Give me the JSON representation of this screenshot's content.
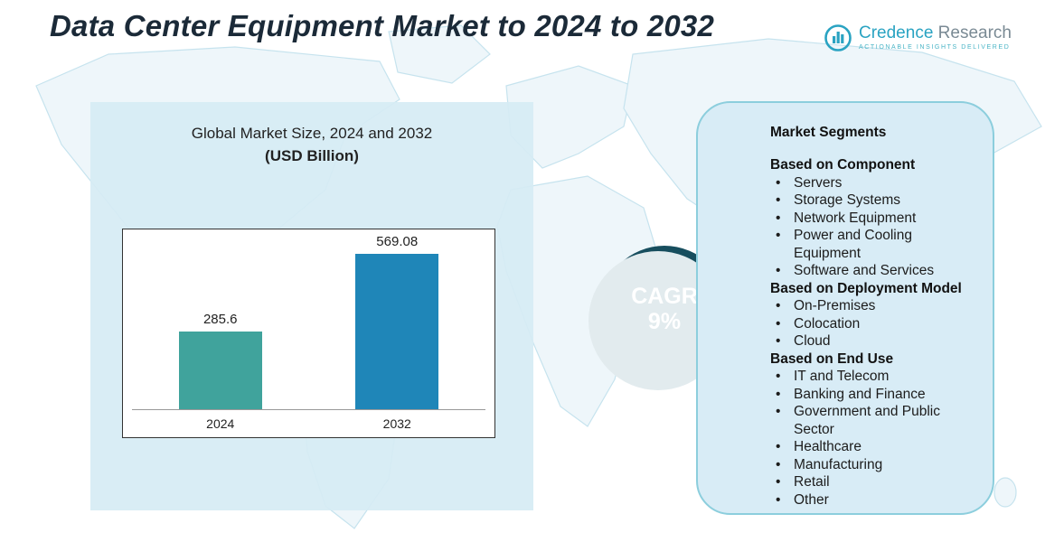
{
  "title": "Data Center Equipment Market to 2024 to 2032",
  "logo": {
    "name_primary": "Credence",
    "name_secondary": "Research",
    "tagline": "Actionable Insights Delivered"
  },
  "chart_data": {
    "type": "bar",
    "title": "Global Market Size, 2024 and 2032",
    "subtitle": "(USD Billion)",
    "categories": [
      "2024",
      "2032"
    ],
    "values": [
      285.6,
      569.08
    ],
    "value_labels": [
      "285.6",
      "569.08"
    ],
    "bar_colors": [
      "#40a39c",
      "#1f86b8"
    ],
    "xlabel": "",
    "ylabel": "",
    "ylim": [
      0,
      600
    ],
    "grid": false,
    "legend": "none"
  },
  "cagr": {
    "label": "CAGR",
    "value": "9%"
  },
  "segments": {
    "heading": "Market Segments",
    "groups": [
      {
        "title": "Based on Component",
        "items": [
          "Servers",
          "Storage Systems",
          "Network Equipment",
          "Power and Cooling Equipment",
          "Software and Services"
        ]
      },
      {
        "title": "Based on Deployment Model",
        "items": [
          "On-Premises",
          "Colocation",
          "Cloud"
        ]
      },
      {
        "title": "Based on End Use",
        "items": [
          "IT and Telecom",
          "Banking and Finance",
          "Government and Public Sector",
          "Healthcare",
          "Manufacturing",
          "Retail",
          "Other"
        ]
      }
    ]
  },
  "colors": {
    "accent_teal": "#2aa3c2",
    "cagr_circle": "#174e5e",
    "panel_blue": "#d8ecf6"
  }
}
